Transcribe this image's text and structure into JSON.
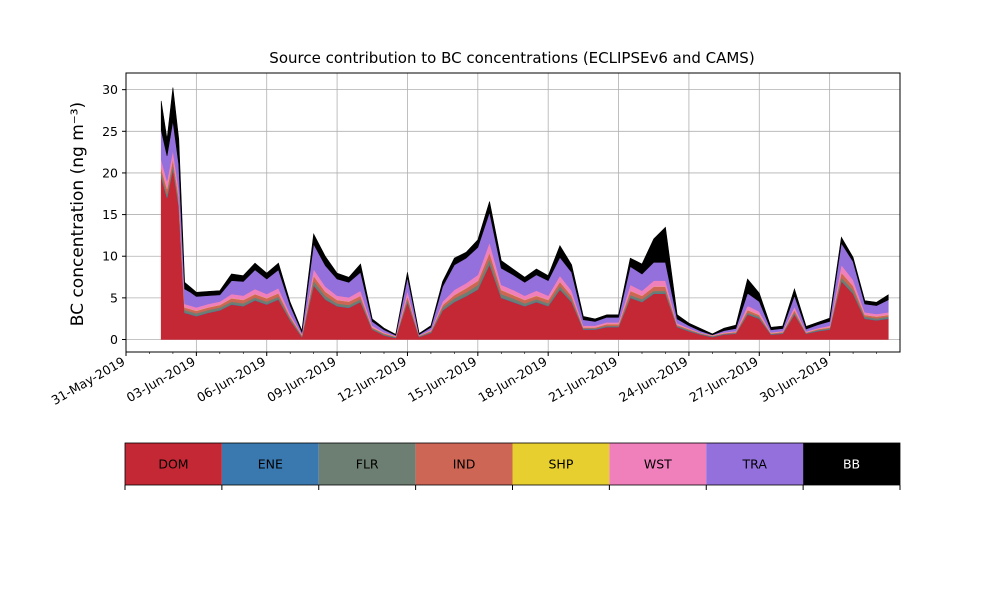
{
  "chart_data": {
    "type": "area",
    "stacked": true,
    "title": "Source contribution to BC concentrations (ECLIPSEv6 and CAMS)",
    "ylabel": "BC concentration (ng m⁻³)",
    "xlabel": "",
    "ylim": [
      -1.5,
      32
    ],
    "yticks": [
      0,
      5,
      10,
      15,
      20,
      25,
      30
    ],
    "xlim": [
      "2019-05-31",
      "2019-07-03T00:00"
    ],
    "xticks": [
      "2019-05-31",
      "2019-06-03",
      "2019-06-06",
      "2019-06-09",
      "2019-06-12",
      "2019-06-15",
      "2019-06-18",
      "2019-06-21",
      "2019-06-24",
      "2019-06-27",
      "2019-06-30"
    ],
    "xtick_labels": [
      "31-May-2019",
      "03-Jun-2019",
      "06-Jun-2019",
      "09-Jun-2019",
      "12-Jun-2019",
      "15-Jun-2019",
      "18-Jun-2019",
      "21-Jun-2019",
      "24-Jun-2019",
      "27-Jun-2019",
      "30-Jun-2019"
    ],
    "grid": true,
    "legend_position": "bottom",
    "x": [
      "2019-06-01T12:00",
      "2019-06-01T18:00",
      "2019-06-02T00:00",
      "2019-06-02T06:00",
      "2019-06-02T12:00",
      "2019-06-02T18:00",
      "2019-06-03T00:00",
      "2019-06-03T12:00",
      "2019-06-04T00:00",
      "2019-06-04T12:00",
      "2019-06-05T00:00",
      "2019-06-05T12:00",
      "2019-06-06T00:00",
      "2019-06-06T12:00",
      "2019-06-07T00:00",
      "2019-06-07T12:00",
      "2019-06-08T00:00",
      "2019-06-08T12:00",
      "2019-06-09T00:00",
      "2019-06-09T12:00",
      "2019-06-10T00:00",
      "2019-06-10T12:00",
      "2019-06-11T00:00",
      "2019-06-11T12:00",
      "2019-06-12T00:00",
      "2019-06-12T12:00",
      "2019-06-13T00:00",
      "2019-06-13T12:00",
      "2019-06-14T00:00",
      "2019-06-14T12:00",
      "2019-06-15T00:00",
      "2019-06-15T12:00",
      "2019-06-16T00:00",
      "2019-06-16T12:00",
      "2019-06-17T00:00",
      "2019-06-17T12:00",
      "2019-06-18T00:00",
      "2019-06-18T12:00",
      "2019-06-19T00:00",
      "2019-06-19T12:00",
      "2019-06-20T00:00",
      "2019-06-20T12:00",
      "2019-06-21T00:00",
      "2019-06-21T12:00",
      "2019-06-22T00:00",
      "2019-06-22T12:00",
      "2019-06-23T00:00",
      "2019-06-23T12:00",
      "2019-06-24T00:00",
      "2019-06-24T12:00",
      "2019-06-25T00:00",
      "2019-06-25T12:00",
      "2019-06-26T00:00",
      "2019-06-26T12:00",
      "2019-06-27T00:00",
      "2019-06-27T12:00",
      "2019-06-28T00:00",
      "2019-06-28T12:00",
      "2019-06-29T00:00",
      "2019-06-29T12:00",
      "2019-06-30T00:00",
      "2019-06-30T12:00",
      "2019-07-01T00:00",
      "2019-07-01T12:00",
      "2019-07-02T00:00",
      "2019-07-02T12:00"
    ],
    "series": [
      {
        "name": "DOM",
        "color": "#c32834",
        "values": [
          19.5,
          17.0,
          20.5,
          16.0,
          3.2,
          3.0,
          2.8,
          3.2,
          3.5,
          4.2,
          4.0,
          4.7,
          4.2,
          4.8,
          2.3,
          0.3,
          6.5,
          4.8,
          4.0,
          3.8,
          4.5,
          1.2,
          0.5,
          0.2,
          4.5,
          0.3,
          0.8,
          3.5,
          4.5,
          5.2,
          6.0,
          9.0,
          5.0,
          4.5,
          4.0,
          4.5,
          4.0,
          6.0,
          4.5,
          1.2,
          1.2,
          1.5,
          1.5,
          5.0,
          4.5,
          5.5,
          5.5,
          1.5,
          1.0,
          0.6,
          0.3,
          0.6,
          0.7,
          3.0,
          2.5,
          0.6,
          0.7,
          3.0,
          0.7,
          1.0,
          1.2,
          7.0,
          5.5,
          2.5,
          2.3,
          2.5
        ]
      },
      {
        "name": "ENE",
        "color": "#3a78b0",
        "values": [
          0.1,
          0.1,
          0.1,
          0.1,
          0.05,
          0.05,
          0.05,
          0.05,
          0.05,
          0.05,
          0.05,
          0.05,
          0.05,
          0.05,
          0.05,
          0.05,
          0.05,
          0.05,
          0.05,
          0.05,
          0.05,
          0.05,
          0.05,
          0.05,
          0.05,
          0.05,
          0.05,
          0.05,
          0.05,
          0.05,
          0.05,
          0.05,
          0.05,
          0.05,
          0.05,
          0.05,
          0.05,
          0.05,
          0.05,
          0.05,
          0.05,
          0.05,
          0.05,
          0.05,
          0.05,
          0.05,
          0.05,
          0.05,
          0.05,
          0.05,
          0.05,
          0.05,
          0.05,
          0.05,
          0.05,
          0.05,
          0.05,
          0.05,
          0.05,
          0.05,
          0.05,
          0.05,
          0.05,
          0.05,
          0.05,
          0.05
        ]
      },
      {
        "name": "FLR",
        "color": "#6d7f72",
        "values": [
          0.4,
          0.4,
          0.4,
          0.4,
          0.3,
          0.3,
          0.3,
          0.3,
          0.3,
          0.3,
          0.3,
          0.3,
          0.3,
          0.3,
          0.2,
          0.1,
          0.5,
          0.4,
          0.3,
          0.3,
          0.3,
          0.1,
          0.1,
          0.05,
          0.3,
          0.05,
          0.1,
          0.3,
          0.4,
          0.4,
          0.5,
          0.6,
          0.4,
          0.4,
          0.3,
          0.3,
          0.3,
          0.4,
          0.3,
          0.1,
          0.1,
          0.1,
          0.1,
          0.3,
          0.3,
          0.3,
          0.3,
          0.1,
          0.1,
          0.05,
          0.05,
          0.05,
          0.05,
          0.2,
          0.2,
          0.05,
          0.05,
          0.2,
          0.05,
          0.1,
          0.1,
          0.4,
          0.4,
          0.2,
          0.2,
          0.2
        ]
      },
      {
        "name": "IND",
        "color": "#cd6655",
        "values": [
          0.6,
          0.6,
          0.7,
          0.6,
          0.3,
          0.3,
          0.3,
          0.3,
          0.3,
          0.4,
          0.4,
          0.4,
          0.4,
          0.4,
          0.2,
          0.1,
          0.6,
          0.5,
          0.4,
          0.4,
          0.4,
          0.1,
          0.1,
          0.05,
          0.4,
          0.05,
          0.1,
          0.3,
          0.4,
          0.5,
          0.5,
          0.8,
          0.5,
          0.4,
          0.4,
          0.4,
          0.4,
          0.5,
          0.4,
          0.1,
          0.1,
          0.2,
          0.2,
          0.5,
          0.4,
          0.5,
          0.5,
          0.1,
          0.1,
          0.05,
          0.05,
          0.05,
          0.1,
          0.3,
          0.2,
          0.05,
          0.1,
          0.3,
          0.05,
          0.1,
          0.1,
          0.6,
          0.5,
          0.2,
          0.2,
          0.2
        ]
      },
      {
        "name": "SHP",
        "color": "#e6cf2e",
        "values": [
          0.05,
          0.05,
          0.05,
          0.05,
          0.02,
          0.02,
          0.02,
          0.02,
          0.02,
          0.02,
          0.02,
          0.02,
          0.02,
          0.02,
          0.02,
          0.02,
          0.02,
          0.02,
          0.02,
          0.02,
          0.02,
          0.02,
          0.02,
          0.02,
          0.02,
          0.02,
          0.02,
          0.02,
          0.02,
          0.02,
          0.02,
          0.02,
          0.02,
          0.02,
          0.02,
          0.02,
          0.02,
          0.02,
          0.02,
          0.02,
          0.02,
          0.02,
          0.02,
          0.02,
          0.02,
          0.02,
          0.02,
          0.02,
          0.02,
          0.02,
          0.02,
          0.02,
          0.02,
          0.02,
          0.02,
          0.02,
          0.02,
          0.02,
          0.02,
          0.02,
          0.02,
          0.02,
          0.02,
          0.02,
          0.02,
          0.02
        ]
      },
      {
        "name": "WST",
        "color": "#f080bc",
        "values": [
          1.0,
          0.9,
          1.0,
          0.9,
          0.4,
          0.4,
          0.4,
          0.4,
          0.4,
          0.5,
          0.5,
          0.6,
          0.5,
          0.6,
          0.3,
          0.1,
          0.8,
          0.6,
          0.5,
          0.5,
          0.6,
          0.2,
          0.1,
          0.05,
          0.6,
          0.05,
          0.1,
          0.4,
          0.6,
          0.6,
          0.7,
          1.2,
          0.6,
          0.6,
          0.5,
          0.6,
          0.5,
          0.7,
          0.6,
          0.2,
          0.2,
          0.2,
          0.2,
          0.7,
          0.6,
          0.7,
          0.7,
          0.2,
          0.1,
          0.05,
          0.05,
          0.1,
          0.1,
          0.5,
          0.4,
          0.1,
          0.1,
          0.4,
          0.1,
          0.1,
          0.2,
          0.9,
          0.7,
          0.3,
          0.3,
          0.3
        ]
      },
      {
        "name": "TRA",
        "color": "#9370db",
        "values": [
          3.5,
          3.0,
          3.5,
          3.0,
          1.8,
          1.6,
          1.3,
          1.0,
          0.8,
          1.6,
          1.7,
          2.3,
          1.8,
          2.2,
          1.0,
          0.2,
          3.0,
          2.5,
          2.0,
          1.8,
          2.2,
          0.5,
          0.3,
          0.1,
          1.6,
          0.1,
          0.3,
          1.8,
          3.0,
          3.0,
          3.3,
          3.6,
          2.0,
          1.8,
          1.6,
          1.9,
          1.8,
          2.2,
          2.2,
          0.7,
          0.5,
          0.6,
          0.6,
          2.2,
          2.0,
          2.2,
          2.2,
          0.5,
          0.3,
          0.2,
          0.05,
          0.2,
          0.3,
          1.5,
          1.2,
          0.3,
          0.3,
          1.3,
          0.3,
          0.4,
          0.5,
          2.6,
          2.2,
          1.0,
          1.0,
          1.5
        ]
      },
      {
        "name": "BB",
        "color": "#000000",
        "values": [
          3.5,
          2.0,
          4.0,
          3.0,
          0.8,
          0.6,
          0.5,
          0.5,
          0.5,
          0.8,
          0.7,
          0.8,
          0.7,
          0.8,
          0.4,
          0.2,
          1.2,
          1.1,
          0.7,
          0.6,
          1.0,
          0.3,
          0.2,
          0.1,
          0.6,
          0.1,
          0.2,
          0.6,
          0.8,
          0.7,
          0.9,
          1.3,
          0.9,
          0.7,
          0.6,
          0.7,
          0.6,
          1.4,
          0.9,
          0.4,
          0.3,
          0.3,
          0.3,
          1.0,
          1.2,
          2.8,
          4.2,
          0.5,
          0.3,
          0.3,
          0.1,
          0.3,
          0.4,
          1.7,
          1.0,
          0.3,
          0.3,
          0.8,
          0.3,
          0.3,
          0.4,
          0.7,
          0.5,
          0.4,
          0.4,
          0.6
        ]
      }
    ]
  },
  "legend": {
    "items": [
      {
        "label": "DOM",
        "color": "#c32834",
        "text_color": "#000000"
      },
      {
        "label": "ENE",
        "color": "#3a78b0",
        "text_color": "#000000"
      },
      {
        "label": "FLR",
        "color": "#6d7f72",
        "text_color": "#000000"
      },
      {
        "label": "IND",
        "color": "#cd6655",
        "text_color": "#000000"
      },
      {
        "label": "SHP",
        "color": "#e6cf2e",
        "text_color": "#000000"
      },
      {
        "label": "WST",
        "color": "#f080bc",
        "text_color": "#000000"
      },
      {
        "label": "TRA",
        "color": "#9370db",
        "text_color": "#000000"
      },
      {
        "label": "BB",
        "color": "#000000",
        "text_color": "#ffffff"
      }
    ]
  }
}
